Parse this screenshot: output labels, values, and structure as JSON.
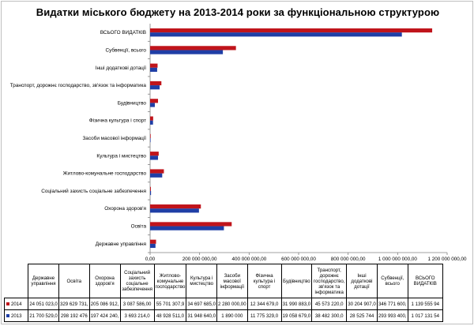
{
  "chart_data": {
    "type": "bar",
    "orientation": "horizontal",
    "title": "Видатки міського бюджету на 2013-2014 роки за функціональною структурою",
    "xlabel": "",
    "ylabel": "",
    "xlim": [
      0,
      1200000000
    ],
    "x_ticks": [
      0,
      200000000,
      400000000,
      600000000,
      800000000,
      1000000000,
      1200000000
    ],
    "x_tick_labels": [
      "0,00",
      "200 000 000,00",
      "400 000 000,00",
      "600 000 000,00",
      "800 000 000,00",
      "1 000 000 000,00",
      "1 200 000 000,00"
    ],
    "grid": false,
    "legend_position": "bottom-left (in data table)",
    "categories": [
      "Державне управління",
      "Освіта",
      "Охорона здоров'я",
      "Соціальний захисть соціальне забезпечення",
      "Житлово-комунальне господарство",
      "Культура і мистецтво",
      "Засоби масової інформації",
      "Фізична культура і спорт",
      "Будівництво",
      "Транспорт, дорожнє господарство, зв'язок та інформатика",
      "Інші додаткові дотації",
      "Субвенції, всього",
      "ВСЬОГО ВИДАТКІВ"
    ],
    "series": [
      {
        "name": "2014",
        "color": "#c0141b",
        "values": [
          24051023,
          329629731,
          205086912,
          3087586,
          55701307.9,
          34697685,
          2280000,
          12344679,
          31990883,
          45573220,
          30204907,
          346771600,
          1139555940
        ]
      },
      {
        "name": "2013",
        "color": "#1f3ea6",
        "values": [
          21700529,
          298192476,
          197424240,
          3693214,
          48928511,
          31948640,
          1890000,
          11775329,
          19058679,
          38482300,
          28525744,
          293993400,
          1017131540
        ]
      }
    ]
  },
  "table": {
    "headers": [
      "Державне управління",
      "Освіта",
      "Охорона здоров'я",
      "Соціальний захисть соціальне забезпечення",
      "Житлово-комунальне господарство",
      "Культура і мистецтво",
      "Засоби масової інформації",
      "Фізична культура і спорт",
      "Будівництво",
      "Транспорт, дорожнє господарство, зв'язок та інформатика",
      "Інші додаткові дотації",
      "Субвенції, всього",
      "ВСЬОГО ВИДАТКІВ"
    ],
    "rows": [
      {
        "label": "2014",
        "cells": [
          "24 051 023,0",
          "329 629 731,",
          "205 086 912,",
          "3 087 586,00",
          "55 701 307,9",
          "34 697 685,0",
          "2 280 000,00",
          "12 344 679,0",
          "31 990 883,0",
          "45 573 220,0",
          "30 204 907,0",
          "346 771 600,",
          "1 139 555 94"
        ]
      },
      {
        "label": "2013",
        "cells": [
          "21 700 529,0",
          "298 192 476",
          "197 424 240,",
          "3 693 214,0",
          "48 928 511,0",
          "31 948 640,0",
          "1 890 000",
          "11 775 329,0",
          "19 058 679,0",
          "38 482 300,0",
          "28 525 744",
          "293 993 400,",
          "1 017 131 54"
        ]
      }
    ]
  }
}
